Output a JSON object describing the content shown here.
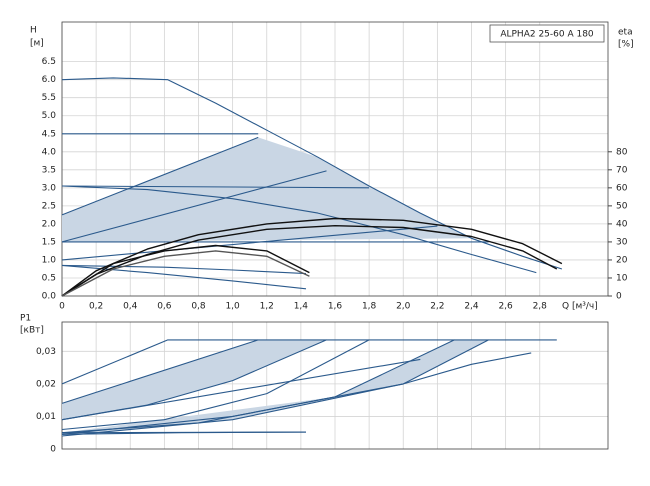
{
  "chart_data": [
    {
      "type": "line",
      "annotation": "ALPHA2 25-60 A 180",
      "ylabel": "H",
      "yunit": "[м]",
      "y2label": "eta",
      "y2unit": "[%]",
      "xlabel": "Q [м³/ч]",
      "xlim": [
        0,
        3.2
      ],
      "ylim": [
        0,
        7.6
      ],
      "y2lim": [
        0,
        152
      ],
      "xticks": [
        0,
        {
          "value": 0.2,
          "label": "0,2"
        },
        {
          "value": 0.4,
          "label": "0,4"
        },
        {
          "value": 0.6,
          "label": "0,6"
        },
        {
          "value": 0.8,
          "label": "0,8"
        },
        {
          "value": 1.0,
          "label": "1,0"
        },
        {
          "value": 1.2,
          "label": "1,2"
        },
        {
          "value": 1.4,
          "label": "1,4"
        },
        {
          "value": 1.6,
          "label": "1,6"
        },
        {
          "value": 1.8,
          "label": "1,8"
        },
        {
          "value": 2.0,
          "label": "2,0"
        },
        {
          "value": 2.2,
          "label": "2,2"
        },
        {
          "value": 2.4,
          "label": "2,4"
        },
        {
          "value": 2.6,
          "label": "2,6"
        },
        {
          "value": 2.8,
          "label": "2,8"
        }
      ],
      "yticks": [
        {
          "value": 0,
          "label": "0.0"
        },
        0.5,
        {
          "value": 1,
          "label": "1.0"
        },
        1.5,
        {
          "value": 2,
          "label": "2.0"
        },
        2.5,
        {
          "value": 3,
          "label": "3.0"
        },
        3.5,
        {
          "value": 4,
          "label": "4.0"
        },
        4.5,
        {
          "value": 5,
          "label": "5.0"
        },
        5.5,
        {
          "value": 6,
          "label": "6.0"
        },
        6.5
      ],
      "y2ticks": [
        0,
        10,
        20,
        30,
        40,
        50,
        60,
        70,
        80
      ],
      "grid": true,
      "areas": [
        {
          "color": "#c9d6e4",
          "x": [
            0,
            1.15,
            1.5,
            1.8,
            2.1,
            2.4,
            0
          ],
          "values": [
            2.25,
            4.4,
            3.85,
            3.05,
            2.3,
            1.6,
            1.5
          ]
        }
      ],
      "series": [
        {
          "color": "#2b5a8c",
          "x": [
            0,
            0.3,
            0.62,
            0.9,
            1.2,
            1.5,
            1.8,
            2.1,
            2.4,
            2.7,
            2.93
          ],
          "values": [
            6.0,
            6.05,
            6.0,
            5.35,
            4.6,
            3.85,
            3.05,
            2.3,
            1.6,
            1.1,
            0.75
          ]
        },
        {
          "color": "#2b5a8c",
          "x": [
            0,
            1.15
          ],
          "values": [
            4.5,
            4.5
          ]
        },
        {
          "color": "#2b5a8c",
          "x": [
            0,
            1.15
          ],
          "values": [
            2.25,
            4.4
          ]
        },
        {
          "color": "#2b5a8c",
          "x": [
            0,
            1.55
          ],
          "values": [
            1.5,
            3.47
          ]
        },
        {
          "color": "#2b5a8c",
          "x": [
            0,
            2.2
          ],
          "values": [
            1.0,
            1.94
          ]
        },
        {
          "color": "#2b5a8c",
          "x": [
            0,
            2.5
          ],
          "values": [
            1.5,
            1.5
          ]
        },
        {
          "color": "#2b5a8c",
          "x": [
            0,
            1.8
          ],
          "values": [
            3.05,
            3.0
          ]
        },
        {
          "color": "#2b5a8c",
          "x": [
            0,
            0.5,
            1.0,
            1.5,
            2.0,
            2.4,
            2.78
          ],
          "values": [
            3.05,
            2.95,
            2.7,
            2.3,
            1.7,
            1.15,
            0.65
          ]
        },
        {
          "color": "#2b5a8c",
          "x": [
            0,
            0.6,
            1.0,
            1.43
          ],
          "values": [
            0.85,
            0.8,
            0.72,
            0.62
          ]
        },
        {
          "color": "#2b5a8c",
          "x": [
            0,
            0.5,
            1.0,
            1.43
          ],
          "values": [
            0.85,
            0.65,
            0.42,
            0.2
          ]
        },
        {
          "color": "#111111",
          "axis": "y2",
          "x": [
            0,
            0.2,
            0.5,
            0.8,
            1.2,
            1.6,
            2.0,
            2.4,
            2.7,
            2.93
          ],
          "values": [
            0,
            14,
            26,
            34,
            40,
            43,
            42,
            37,
            29,
            18
          ]
        },
        {
          "color": "#111111",
          "axis": "y2",
          "x": [
            0,
            0.2,
            0.5,
            0.8,
            1.2,
            1.6,
            2.0,
            2.4,
            2.7,
            2.9
          ],
          "values": [
            0,
            12,
            23,
            31,
            37,
            39,
            38,
            33,
            25,
            15
          ]
        },
        {
          "color": "#111111",
          "axis": "y2",
          "x": [
            0,
            0.3,
            0.6,
            0.9,
            1.2,
            1.45
          ],
          "values": [
            0,
            18,
            25,
            28,
            25,
            13
          ]
        },
        {
          "color": "#555555",
          "axis": "y2",
          "x": [
            0,
            0.3,
            0.6,
            0.9,
            1.2,
            1.45
          ],
          "values": [
            0,
            15,
            22,
            25,
            22,
            11
          ]
        }
      ]
    },
    {
      "type": "line",
      "ylabel": "P1",
      "yunit": "[кВт]",
      "xlim": [
        0,
        3.2
      ],
      "ylim": [
        0,
        0.039
      ],
      "yticks": [
        0,
        {
          "value": 0.01,
          "label": "0,01"
        },
        {
          "value": 0.02,
          "label": "0,02"
        },
        {
          "value": 0.03,
          "label": "0,03"
        }
      ],
      "grid": true,
      "areas": [
        {
          "color": "#c9d6e4",
          "x": [
            0,
            1.15,
            1.55,
            1.0,
            0.5,
            0
          ],
          "values": [
            0.014,
            0.0335,
            0.0335,
            0.021,
            0.0135,
            0.009
          ]
        },
        {
          "color": "#c9d6e4",
          "x": [
            0,
            1.6,
            2.3,
            2.5,
            2.0,
            1.0,
            0
          ],
          "values": [
            0.005,
            0.016,
            0.0335,
            0.0335,
            0.02,
            0.009,
            0.004
          ]
        }
      ],
      "series": [
        {
          "color": "#2b5a8c",
          "x": [
            0,
            0.62,
            2.9
          ],
          "values": [
            0.02,
            0.0335,
            0.0335
          ]
        },
        {
          "color": "#2b5a8c",
          "x": [
            0,
            1.15
          ],
          "values": [
            0.014,
            0.0335
          ]
        },
        {
          "color": "#2b5a8c",
          "x": [
            0,
            0.5,
            1.0,
            1.55
          ],
          "values": [
            0.009,
            0.0135,
            0.021,
            0.0335
          ]
        },
        {
          "color": "#2b5a8c",
          "x": [
            0,
            0.6,
            1.2,
            1.8
          ],
          "values": [
            0.006,
            0.009,
            0.017,
            0.0335
          ]
        },
        {
          "color": "#2b5a8c",
          "x": [
            0,
            0.8,
            1.6,
            2.3
          ],
          "values": [
            0.005,
            0.008,
            0.016,
            0.0335
          ]
        },
        {
          "color": "#2b5a8c",
          "x": [
            0,
            1.0,
            2.0,
            2.5
          ],
          "values": [
            0.004,
            0.009,
            0.02,
            0.0335
          ]
        },
        {
          "color": "#2b5a8c",
          "x": [
            0,
            1.0,
            2.0,
            2.4,
            2.75
          ],
          "values": [
            0.0045,
            0.01,
            0.02,
            0.026,
            0.0295
          ]
        },
        {
          "color": "#2b5a8c",
          "x": [
            0,
            2.1
          ],
          "values": [
            0.009,
            0.0275
          ]
        },
        {
          "color": "#2b5a8c",
          "x": [
            0,
            1.43
          ],
          "values": [
            0.005,
            0.0052
          ]
        },
        {
          "color": "#2b5a8c",
          "x": [
            0,
            0.7,
            1.43
          ],
          "values": [
            0.0045,
            0.005,
            0.0052
          ]
        }
      ]
    }
  ]
}
